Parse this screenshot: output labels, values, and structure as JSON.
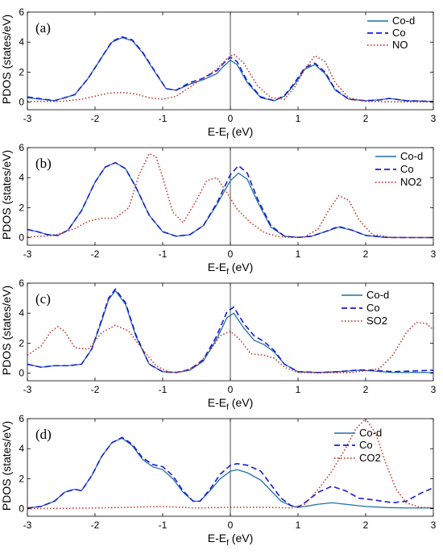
{
  "chart_data": [
    {
      "type": "line",
      "panel_label": "(a)",
      "xlabel": "E-E",
      "xlabel_sub": "f",
      "xlabel_unit": " (eV)",
      "ylabel": "PDOS (states/eV)",
      "xlim": [
        -3,
        3
      ],
      "ylim": [
        -0.5,
        6
      ],
      "xticks": [
        "-3",
        "-2",
        "-1",
        "0",
        "1",
        "2",
        "3"
      ],
      "yticks": [
        "0",
        "2",
        "4",
        "6"
      ],
      "legend_position": "top-right",
      "series": [
        {
          "name": "Co-d",
          "color": "#1f6fa8",
          "style": "solid",
          "x": [
            -3,
            -2.6,
            -2.3,
            -2.1,
            -1.9,
            -1.75,
            -1.6,
            -1.45,
            -1.3,
            -1.1,
            -0.95,
            -0.8,
            -0.6,
            -0.4,
            -0.2,
            -0.1,
            0,
            0.1,
            0.25,
            0.45,
            0.65,
            0.8,
            0.95,
            1.1,
            1.25,
            1.4,
            1.55,
            1.75,
            2.0,
            2.2,
            2.35,
            2.6,
            3
          ],
          "y": [
            0.3,
            0.1,
            0.5,
            1.6,
            3.0,
            4.0,
            4.3,
            4.1,
            3.3,
            1.9,
            0.9,
            0.8,
            1.2,
            1.5,
            1.9,
            2.4,
            2.8,
            2.5,
            1.3,
            0.3,
            0.1,
            0.4,
            1.2,
            2.2,
            2.5,
            1.9,
            0.8,
            0.2,
            0.1,
            0.15,
            0.25,
            0.1,
            0.05
          ]
        },
        {
          "name": "Co",
          "color": "#1a1ad6",
          "style": "dashed",
          "x": [
            -3,
            -2.6,
            -2.3,
            -2.1,
            -1.9,
            -1.75,
            -1.6,
            -1.45,
            -1.3,
            -1.1,
            -0.95,
            -0.8,
            -0.6,
            -0.4,
            -0.2,
            -0.1,
            0,
            0.1,
            0.25,
            0.45,
            0.65,
            0.8,
            0.95,
            1.1,
            1.25,
            1.4,
            1.55,
            1.75,
            2.0,
            2.2,
            2.35,
            2.6,
            3
          ],
          "y": [
            0.35,
            0.1,
            0.5,
            1.6,
            3.0,
            4.05,
            4.35,
            4.15,
            3.35,
            1.95,
            0.9,
            0.8,
            1.3,
            1.6,
            2.1,
            2.6,
            3.0,
            2.7,
            1.4,
            0.35,
            0.1,
            0.45,
            1.3,
            2.3,
            2.6,
            2.0,
            0.85,
            0.2,
            0.1,
            0.15,
            0.25,
            0.1,
            0.05
          ]
        },
        {
          "name": "NO",
          "color": "#c0392b",
          "style": "dotted",
          "x": [
            -3,
            -2.5,
            -2.2,
            -2.0,
            -1.8,
            -1.6,
            -1.4,
            -1.2,
            -1.0,
            -0.8,
            -0.6,
            -0.4,
            -0.2,
            -0.05,
            0.05,
            0.2,
            0.4,
            0.6,
            0.8,
            0.95,
            1.1,
            1.25,
            1.4,
            1.55,
            1.75,
            2.0,
            2.5,
            3
          ],
          "y": [
            0.05,
            0.05,
            0.2,
            0.4,
            0.6,
            0.65,
            0.55,
            0.3,
            0.2,
            0.4,
            1.0,
            1.6,
            2.2,
            2.9,
            3.2,
            2.6,
            1.1,
            0.3,
            0.2,
            1.0,
            2.2,
            3.1,
            2.7,
            1.3,
            0.3,
            0.05,
            0.02,
            0.02
          ]
        }
      ]
    },
    {
      "type": "line",
      "panel_label": "(b)",
      "xlabel": "E-E",
      "xlabel_sub": "f",
      "xlabel_unit": " (eV)",
      "ylabel": "PDOS (states/eV)",
      "xlim": [
        -3,
        3
      ],
      "ylim": [
        -0.5,
        6
      ],
      "xticks": [
        "-3",
        "-2",
        "-1",
        "0",
        "1",
        "2",
        "3"
      ],
      "yticks": [
        "0",
        "2",
        "4",
        "6"
      ],
      "legend_position": "top-right",
      "series": [
        {
          "name": "Co-d",
          "color": "#1f6fa8",
          "style": "solid",
          "x": [
            -3,
            -2.85,
            -2.7,
            -2.55,
            -2.4,
            -2.2,
            -2.0,
            -1.85,
            -1.7,
            -1.55,
            -1.4,
            -1.2,
            -1.0,
            -0.8,
            -0.6,
            -0.4,
            -0.2,
            0,
            0.12,
            0.25,
            0.4,
            0.6,
            0.8,
            1.0,
            1.2,
            1.4,
            1.6,
            1.8,
            2.0,
            2.3,
            2.6,
            3
          ],
          "y": [
            0.55,
            0.4,
            0.2,
            0.15,
            0.5,
            1.8,
            3.7,
            4.7,
            5.0,
            4.6,
            3.4,
            1.5,
            0.4,
            0.1,
            0.2,
            0.8,
            2.2,
            3.8,
            4.3,
            3.9,
            2.4,
            0.7,
            0.1,
            0.02,
            0.1,
            0.4,
            0.7,
            0.5,
            0.15,
            0.02,
            0.01,
            0.01
          ]
        },
        {
          "name": "Co",
          "color": "#1a1ad6",
          "style": "dashed",
          "x": [
            -3,
            -2.85,
            -2.7,
            -2.55,
            -2.4,
            -2.2,
            -2.0,
            -1.85,
            -1.7,
            -1.55,
            -1.4,
            -1.2,
            -1.0,
            -0.8,
            -0.6,
            -0.4,
            -0.2,
            0,
            0.12,
            0.25,
            0.4,
            0.6,
            0.8,
            1.0,
            1.2,
            1.4,
            1.6,
            1.8,
            2.0,
            2.3,
            2.6,
            3
          ],
          "y": [
            0.55,
            0.4,
            0.2,
            0.15,
            0.5,
            1.8,
            3.7,
            4.7,
            5.0,
            4.6,
            3.4,
            1.5,
            0.4,
            0.1,
            0.2,
            0.8,
            2.3,
            4.2,
            4.8,
            4.3,
            2.6,
            0.8,
            0.1,
            0.02,
            0.1,
            0.4,
            0.75,
            0.5,
            0.15,
            0.02,
            0.01,
            0.01
          ]
        },
        {
          "name": "NO2",
          "color": "#c0392b",
          "style": "dotted",
          "x": [
            -3,
            -2.6,
            -2.3,
            -2.1,
            -1.9,
            -1.7,
            -1.5,
            -1.35,
            -1.2,
            -1.1,
            -1.0,
            -0.85,
            -0.7,
            -0.5,
            -0.35,
            -0.2,
            -0.05,
            0.1,
            0.3,
            0.5,
            0.7,
            0.9,
            1.1,
            1.3,
            1.45,
            1.6,
            1.75,
            1.9,
            2.1,
            2.4,
            3
          ],
          "y": [
            0.05,
            0.15,
            0.6,
            1.1,
            1.3,
            1.3,
            2.0,
            4.2,
            5.6,
            5.4,
            4.0,
            1.7,
            1.0,
            2.5,
            3.8,
            4.0,
            3.0,
            1.9,
            1.0,
            0.35,
            0.08,
            0.02,
            0.05,
            0.6,
            1.8,
            2.8,
            2.5,
            1.2,
            0.2,
            0.02,
            0.01
          ]
        }
      ]
    },
    {
      "type": "line",
      "panel_label": "(c)",
      "xlabel": "E-E",
      "xlabel_sub": "f",
      "xlabel_unit": " (eV)",
      "ylabel": "PDOS (states/eV)",
      "xlim": [
        -3,
        3
      ],
      "ylim": [
        -0.5,
        6
      ],
      "xticks": [
        "-3",
        "-2",
        "-1",
        "0",
        "1",
        "2",
        "3"
      ],
      "yticks": [
        "0",
        "2",
        "4",
        "6"
      ],
      "legend_position": "top-right",
      "series": [
        {
          "name": "Co-d",
          "color": "#1f6fa8",
          "style": "solid",
          "x": [
            -3,
            -2.8,
            -2.6,
            -2.4,
            -2.2,
            -2.05,
            -1.9,
            -1.8,
            -1.7,
            -1.55,
            -1.4,
            -1.2,
            -1.0,
            -0.8,
            -0.6,
            -0.4,
            -0.2,
            -0.05,
            0.05,
            0.2,
            0.35,
            0.5,
            0.65,
            0.8,
            1.0,
            1.3,
            1.6,
            1.9,
            2.1,
            2.4,
            2.7,
            3
          ],
          "y": [
            0.6,
            0.4,
            0.5,
            0.5,
            0.6,
            1.6,
            3.5,
            4.9,
            5.5,
            4.6,
            2.5,
            0.6,
            0.1,
            0.05,
            0.2,
            0.8,
            2.3,
            3.7,
            4.0,
            3.0,
            2.2,
            1.9,
            1.4,
            0.6,
            0.1,
            0.05,
            0.1,
            0.2,
            0.15,
            0.05,
            0.05,
            0.05
          ]
        },
        {
          "name": "Co",
          "color": "#1a1ad6",
          "style": "dashed",
          "x": [
            -3,
            -2.8,
            -2.6,
            -2.4,
            -2.2,
            -2.05,
            -1.9,
            -1.8,
            -1.7,
            -1.55,
            -1.4,
            -1.2,
            -1.0,
            -0.8,
            -0.6,
            -0.4,
            -0.2,
            -0.05,
            0.05,
            0.2,
            0.35,
            0.5,
            0.65,
            0.8,
            1.0,
            1.3,
            1.6,
            1.9,
            2.1,
            2.4,
            2.7,
            3
          ],
          "y": [
            0.6,
            0.4,
            0.5,
            0.5,
            0.6,
            1.6,
            3.6,
            5.0,
            5.6,
            4.7,
            2.6,
            0.6,
            0.1,
            0.05,
            0.25,
            0.9,
            2.5,
            4.1,
            4.4,
            3.3,
            2.5,
            2.1,
            1.5,
            0.6,
            0.1,
            0.05,
            0.1,
            0.22,
            0.2,
            0.1,
            0.15,
            0.2
          ]
        },
        {
          "name": "SO2",
          "color": "#c0392b",
          "style": "dotted",
          "x": [
            -3,
            -2.8,
            -2.65,
            -2.55,
            -2.45,
            -2.3,
            -2.1,
            -1.9,
            -1.7,
            -1.5,
            -1.3,
            -1.1,
            -0.9,
            -0.7,
            -0.5,
            -0.3,
            -0.15,
            0,
            0.15,
            0.3,
            0.5,
            0.65,
            0.8,
            1.0,
            1.3,
            1.8,
            2.2,
            2.4,
            2.6,
            2.75,
            2.9,
            3
          ],
          "y": [
            1.2,
            1.8,
            2.8,
            3.1,
            2.8,
            1.7,
            1.6,
            2.7,
            3.2,
            2.8,
            1.6,
            0.5,
            0.05,
            0.1,
            0.5,
            1.5,
            2.5,
            2.8,
            2.2,
            1.3,
            1.2,
            1.0,
            0.4,
            0.05,
            0.02,
            0.05,
            0.3,
            1.2,
            2.7,
            3.4,
            3.3,
            2.9
          ]
        }
      ]
    },
    {
      "type": "line",
      "panel_label": "(d)",
      "xlabel": "E-E",
      "xlabel_sub": "f",
      "xlabel_unit": " (eV)",
      "ylabel": "PDOS (states/eV)",
      "xlim": [
        -3,
        3
      ],
      "ylim": [
        -0.5,
        6
      ],
      "xticks": [
        "-3",
        "-2",
        "-1",
        "0",
        "1",
        "2",
        "3"
      ],
      "yticks": [
        "0",
        "2",
        "4",
        "6"
      ],
      "legend_position": "top-right",
      "series": [
        {
          "name": "Co-d",
          "color": "#1f6fa8",
          "style": "solid",
          "x": [
            -3,
            -2.8,
            -2.6,
            -2.45,
            -2.3,
            -2.2,
            -2.05,
            -1.9,
            -1.75,
            -1.6,
            -1.45,
            -1.3,
            -1.15,
            -1.0,
            -0.85,
            -0.7,
            -0.55,
            -0.45,
            -0.3,
            -0.15,
            0,
            0.1,
            0.25,
            0.45,
            0.6,
            0.75,
            0.9,
            1.0,
            1.1,
            1.3,
            1.5,
            1.7,
            2.0,
            2.3,
            2.6,
            3
          ],
          "y": [
            0.05,
            0.15,
            0.5,
            1.1,
            1.3,
            1.2,
            2.2,
            3.5,
            4.4,
            4.7,
            4.2,
            3.3,
            2.8,
            2.6,
            2.0,
            1.1,
            0.5,
            0.5,
            1.2,
            2.0,
            2.5,
            2.6,
            2.4,
            1.9,
            1.2,
            0.5,
            0.2,
            0.1,
            0.15,
            0.3,
            0.4,
            0.3,
            0.15,
            0.08,
            0.05,
            0.05
          ]
        },
        {
          "name": "Co",
          "color": "#1a1ad6",
          "style": "dashed",
          "x": [
            -3,
            -2.8,
            -2.6,
            -2.45,
            -2.3,
            -2.2,
            -2.05,
            -1.9,
            -1.75,
            -1.6,
            -1.45,
            -1.3,
            -1.15,
            -1.0,
            -0.85,
            -0.7,
            -0.55,
            -0.45,
            -0.3,
            -0.15,
            0,
            0.1,
            0.25,
            0.45,
            0.6,
            0.75,
            0.9,
            1.0,
            1.1,
            1.3,
            1.5,
            1.7,
            1.9,
            2.1,
            2.4,
            2.6,
            2.8,
            3
          ],
          "y": [
            0.05,
            0.15,
            0.5,
            1.1,
            1.3,
            1.2,
            2.2,
            3.5,
            4.4,
            4.75,
            4.3,
            3.4,
            2.95,
            2.8,
            2.2,
            1.2,
            0.5,
            0.5,
            1.3,
            2.3,
            2.9,
            3.0,
            2.9,
            2.5,
            1.6,
            0.7,
            0.2,
            0.1,
            0.4,
            1.1,
            1.5,
            1.2,
            0.7,
            0.6,
            0.4,
            0.5,
            1.0,
            1.4
          ]
        },
        {
          "name": "CO2",
          "color": "#c0392b",
          "style": "dotted",
          "x": [
            -3,
            -2.0,
            -1.0,
            -0.5,
            0.0,
            0.5,
            0.9,
            1.1,
            1.3,
            1.5,
            1.7,
            1.85,
            2.0,
            2.15,
            2.3,
            2.45,
            2.6,
            2.8,
            3
          ],
          "y": [
            0.0,
            0.05,
            0.15,
            0.05,
            0.1,
            0.1,
            0.05,
            0.3,
            1.3,
            2.5,
            4.0,
            5.3,
            6.0,
            5.0,
            3.0,
            1.3,
            0.4,
            0.1,
            0.05
          ]
        }
      ]
    }
  ]
}
